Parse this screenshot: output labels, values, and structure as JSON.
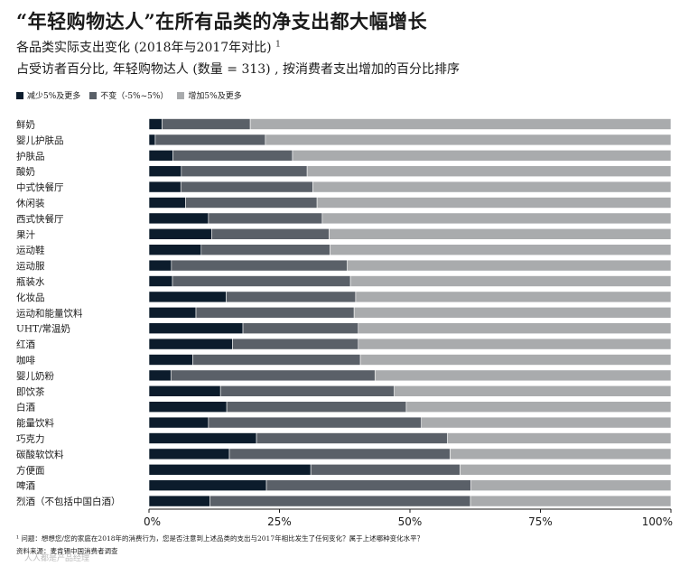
{
  "title": "“年轻购物达人”在所有品类的净支出都大幅增长",
  "subtitle": "各品类实际支出变化 (2018年与2017年对比)",
  "subtitle_footnote_mark": "1",
  "note": "占受访者百分比, 年轻购物达人 (数量 = 313) , 按消费者支出增加的百分比排序",
  "legend": [
    {
      "label": "减少5%及更多",
      "color": "#0c1c2c"
    },
    {
      "label": "不变（-5%~5%）",
      "color": "#5a6068"
    },
    {
      "label": "增加5%及更多",
      "color": "#a9abad"
    }
  ],
  "footnote": "¹ 问题：想想您/您的家庭在2018年的消费行为，您是否注意到上述品类的支出与2017年相比发生了任何变化？属于上述哪种变化水平？",
  "source": "资料来源：麦肯锡中国消费者调查",
  "watermark": " 人人都是产品经理",
  "chart_data": {
    "type": "bar",
    "orientation": "horizontal",
    "stacked": true,
    "title": "“年轻购物达人”在所有品类的净支出都大幅增长",
    "xlabel": "",
    "ylabel": "",
    "xlim": [
      0,
      100
    ],
    "x_ticks": [
      "0%",
      "25%",
      "50%",
      "75%",
      "100%"
    ],
    "categories": [
      "鲜奶",
      "婴儿护肤品",
      "护肤品",
      "酸奶",
      "中式快餐厅",
      "休闲装",
      "西式快餐厅",
      "果汁",
      "运动鞋",
      "运动服",
      "瓶装水",
      "化妆品",
      "运动和能量饮料",
      "UHT/常温奶",
      "红酒",
      "咖啡",
      "婴儿奶粉",
      "即饮茶",
      "白酒",
      "能量饮料",
      "巧克力",
      "碳酸软饮料",
      "方便面",
      "啤酒",
      "烈酒（不包括中国白酒）"
    ],
    "series": [
      {
        "name": "减少5%及更多",
        "color": "#0c1c2c",
        "values": [
          2.5,
          1.2,
          4.6,
          6.2,
          6.1,
          7.0,
          11.4,
          12.0,
          10.0,
          4.3,
          4.5,
          14.8,
          9.0,
          18.0,
          16.0,
          8.4,
          4.2,
          13.7,
          14.9,
          11.4,
          20.6,
          15.4,
          31.0,
          22.5,
          11.7
        ]
      },
      {
        "name": "不变（-5%~5%）",
        "color": "#5a6068",
        "values": [
          16.9,
          21.1,
          22.9,
          24.1,
          25.3,
          25.2,
          21.8,
          22.5,
          24.7,
          33.7,
          34.1,
          24.8,
          30.3,
          22.1,
          24.1,
          32.1,
          39.1,
          33.3,
          34.4,
          40.8,
          36.6,
          42.3,
          28.6,
          39.2,
          49.9
        ]
      },
      {
        "name": "增加5%及更多",
        "color": "#a9abad",
        "values": [
          80.6,
          77.7,
          72.5,
          69.7,
          68.6,
          67.8,
          66.8,
          65.5,
          65.3,
          62.0,
          61.4,
          60.4,
          60.7,
          59.9,
          59.9,
          59.5,
          56.7,
          53.0,
          50.7,
          47.8,
          42.8,
          42.3,
          40.4,
          38.3,
          38.4
        ]
      }
    ]
  }
}
